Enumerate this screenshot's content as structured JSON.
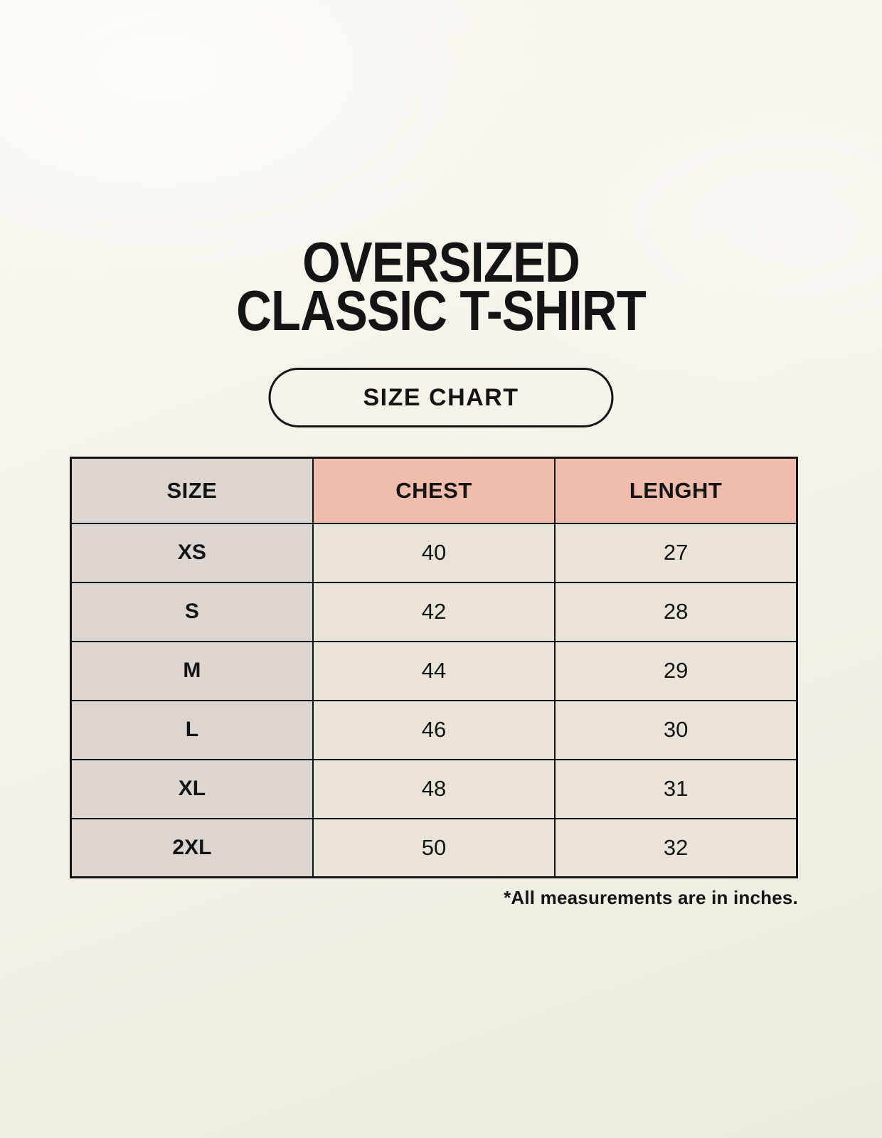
{
  "header": {
    "title_line1": "OVERSIZED",
    "title_line2": "CLASSIC T-SHIRT",
    "size_chart_label": "SIZE CHART"
  },
  "footnote": "*All measurements are in inches.",
  "chart_data": {
    "type": "table",
    "title": "OVERSIZED CLASSIC T-SHIRT SIZE CHART",
    "columns": [
      "SIZE",
      "CHEST",
      "LENGHT"
    ],
    "rows": [
      [
        "XS",
        "40",
        "27"
      ],
      [
        "S",
        "42",
        "28"
      ],
      [
        "M",
        "44",
        "29"
      ],
      [
        "L",
        "46",
        "30"
      ],
      [
        "XL",
        "48",
        "31"
      ],
      [
        "2XL",
        "50",
        "32"
      ]
    ],
    "units": "inches"
  },
  "colors": {
    "border": "#141414",
    "text": "#141414",
    "header_accent_bg": "#f0bcab",
    "size_column_bg": "#ddd6d0",
    "data_cell_bg": "#eae3d7",
    "background": "#f6f2ea"
  }
}
